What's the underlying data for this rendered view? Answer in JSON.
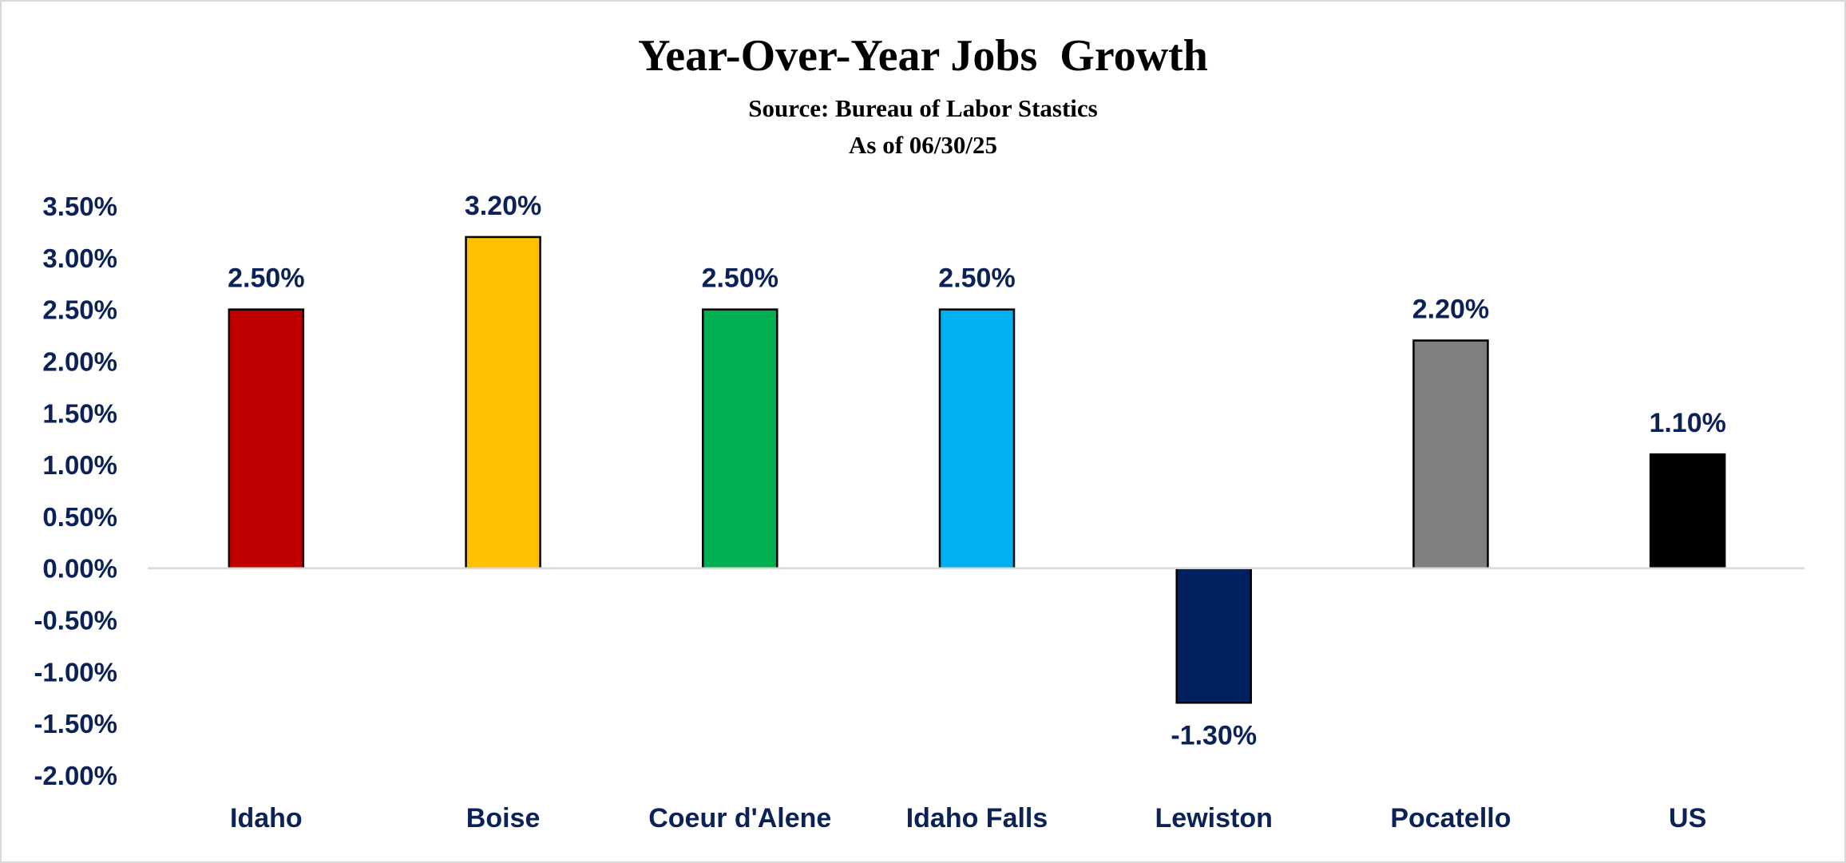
{
  "chart_data": {
    "type": "bar",
    "title": "Year-Over-Year Jobs  Growth",
    "subtitle_lines": [
      "Source: Bureau of Labor Stastics",
      "As of 06/30/25"
    ],
    "categories": [
      "Idaho",
      "Boise",
      "Coeur d'Alene",
      "Idaho Falls",
      "Lewiston",
      "Pocatello",
      "US"
    ],
    "values": [
      2.5,
      3.2,
      2.5,
      2.5,
      -1.3,
      2.2,
      1.1
    ],
    "data_labels": [
      "2.50%",
      "3.20%",
      "2.50%",
      "2.50%",
      "-1.30%",
      "2.20%",
      "1.10%"
    ],
    "colors": [
      "#c00000",
      "#ffc000",
      "#00b050",
      "#00b0f0",
      "#002060",
      "#808080",
      "#000000"
    ],
    "ylim": [
      -2.0,
      3.5
    ],
    "y_ticks": [
      3.5,
      3.0,
      2.5,
      2.0,
      1.5,
      1.0,
      0.5,
      0.0,
      -0.5,
      -1.0,
      -1.5,
      -2.0
    ],
    "y_tick_labels": [
      "3.50%",
      "3.00%",
      "2.50%",
      "2.00%",
      "1.50%",
      "1.00%",
      "0.50%",
      "0.00%",
      "-0.50%",
      "-1.00%",
      "-1.50%",
      "-2.00%"
    ],
    "grid": false,
    "legend": "none",
    "xlabel": "",
    "ylabel": ""
  }
}
